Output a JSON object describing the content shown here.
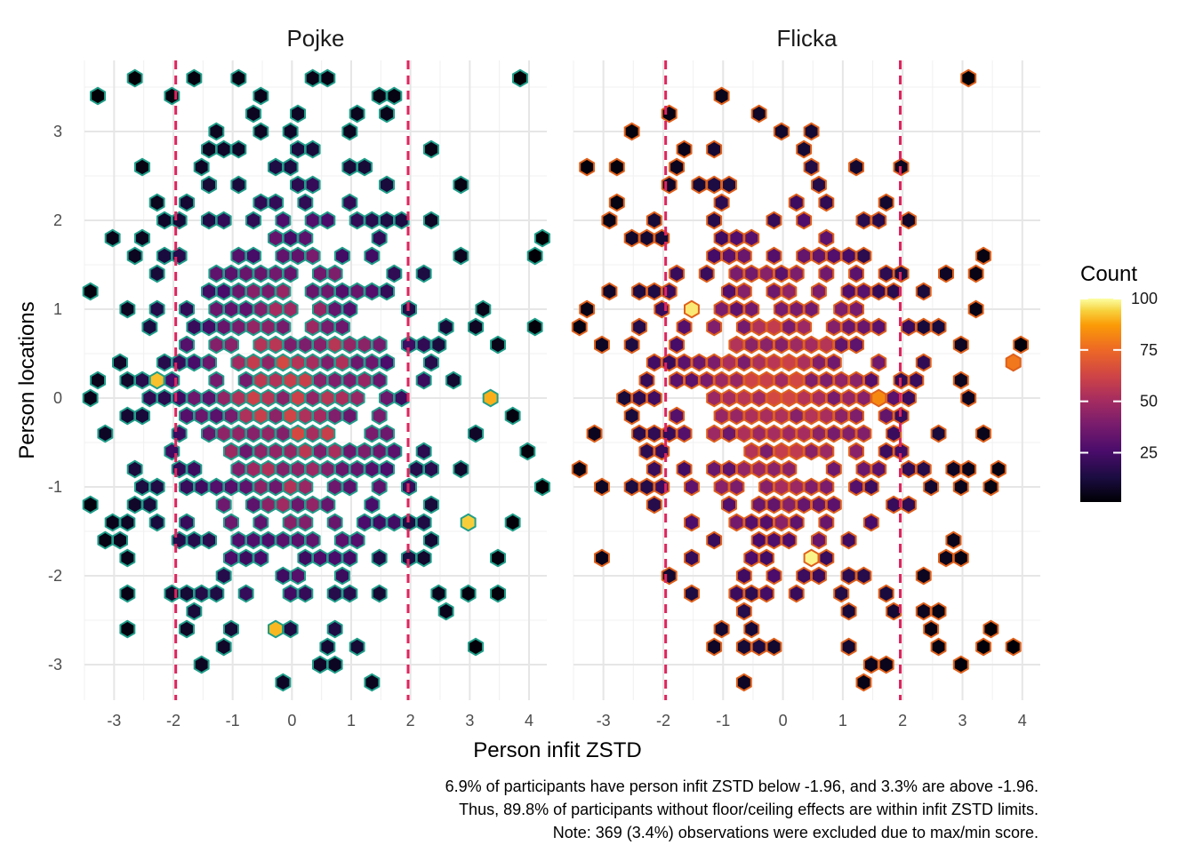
{
  "chart_data": {
    "type": "hexbin",
    "facets": [
      "Pojke",
      "Flicka"
    ],
    "xlabel": "Person infit ZSTD",
    "ylabel": "Person locations",
    "xlim": [
      -3.5,
      4.3
    ],
    "ylim": [
      -3.4,
      3.8
    ],
    "x_ticks": [
      -3,
      -2,
      -1,
      0,
      1,
      2,
      3,
      4
    ],
    "y_ticks": [
      -3,
      -2,
      -1,
      0,
      1,
      2,
      3
    ],
    "reference_lines_x": [
      -1.96,
      1.96
    ],
    "reference_line_color": "#e0245e",
    "grid": true,
    "outline_colors": {
      "Pojke": "#1f9e89",
      "Flicka": "#e0601a"
    },
    "colorscale": "inferno",
    "legend": {
      "title": "Count",
      "position": "right",
      "range": [
        1,
        100
      ],
      "ticks": [
        25,
        50,
        75,
        100
      ]
    },
    "caption": [
      "6.9% of participants have person infit ZSTD below -1.96, and 3.3% are above -1.96.",
      "Thus, 89.8% of participants without floor/ceiling effects are within infit ZSTD limits.",
      "Note: 369 (3.4%) observations were excluded due to max/min score."
    ]
  }
}
